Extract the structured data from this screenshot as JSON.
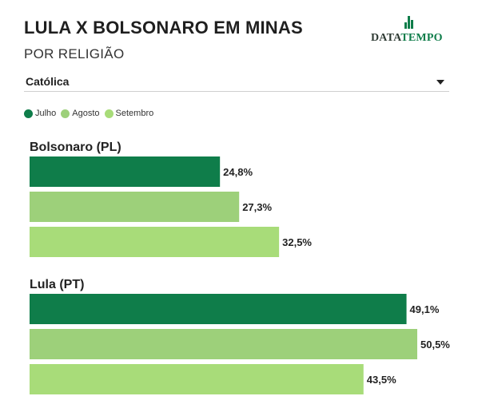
{
  "header": {
    "title": "LULA X BOLSONARO EM MINAS",
    "subtitle": "POR RELIGIÃO"
  },
  "logo": {
    "text_a": "DATA",
    "text_b": "TEMPO"
  },
  "filter": {
    "selected": "Católica",
    "icon": "chevron-down-icon"
  },
  "legend": [
    {
      "label": "Julho",
      "color": "#0f7d4a"
    },
    {
      "label": "Agosto",
      "color": "#9dd07a"
    },
    {
      "label": "Setembro",
      "color": "#a8dc79"
    }
  ],
  "chart_data": {
    "type": "bar",
    "orientation": "horizontal",
    "groups": [
      "Bolsonaro (PL)",
      "Lula (PT)"
    ],
    "series": [
      {
        "name": "Julho",
        "color": "#0f7d4a",
        "values": [
          24.8,
          49.1
        ]
      },
      {
        "name": "Agosto",
        "color": "#9dd07a",
        "values": [
          27.3,
          50.5
        ]
      },
      {
        "name": "Setembro",
        "color": "#a8dc79",
        "values": [
          32.5,
          43.5
        ]
      }
    ],
    "value_labels": [
      [
        "24,8%",
        "49,1%"
      ],
      [
        "27,3%",
        "50,5%"
      ],
      [
        "32,5%",
        "43,5%"
      ]
    ],
    "xlim": [
      0,
      50.5
    ],
    "grid": false,
    "legend_position": "top-left"
  }
}
